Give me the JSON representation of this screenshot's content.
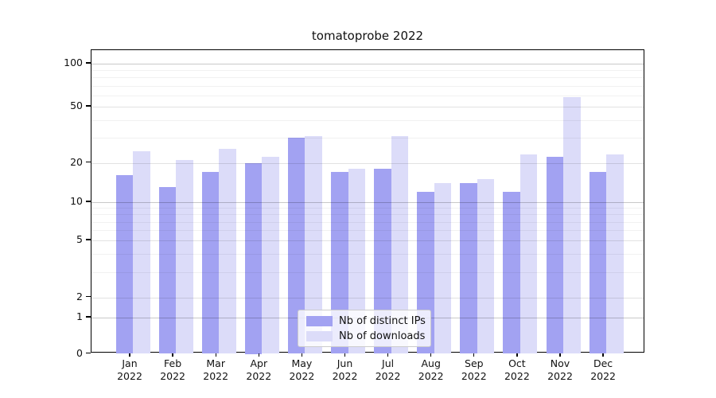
{
  "chart_data": {
    "type": "bar",
    "title": "tomatoprobe 2022",
    "categories": [
      {
        "label": "Jan",
        "sub": "2022"
      },
      {
        "label": "Feb",
        "sub": "2022"
      },
      {
        "label": "Mar",
        "sub": "2022"
      },
      {
        "label": "Apr",
        "sub": "2022"
      },
      {
        "label": "May",
        "sub": "2022"
      },
      {
        "label": "Jun",
        "sub": "2022"
      },
      {
        "label": "Jul",
        "sub": "2022"
      },
      {
        "label": "Aug",
        "sub": "2022"
      },
      {
        "label": "Sep",
        "sub": "2022"
      },
      {
        "label": "Oct",
        "sub": "2022"
      },
      {
        "label": "Nov",
        "sub": "2022"
      },
      {
        "label": "Dec",
        "sub": "2022"
      }
    ],
    "series": [
      {
        "name": "Nb of distinct IPs",
        "color": "#a2a2f2",
        "values": [
          16,
          13,
          17,
          20,
          30,
          17,
          18,
          12,
          14,
          12,
          22,
          17
        ]
      },
      {
        "name": "Nb of downloads",
        "color": "#dcdcf9",
        "values": [
          24,
          21,
          25,
          22,
          31,
          18,
          31,
          14,
          15,
          23,
          58,
          23
        ]
      }
    ],
    "yaxis": {
      "scale": "symlog",
      "tick_values": [
        0,
        1,
        2,
        5,
        10,
        20,
        50,
        100
      ],
      "tick_labels": [
        "0",
        "1",
        "2",
        "5",
        "10",
        "20",
        "50",
        "100"
      ],
      "minor_gridline_values": [
        3,
        4,
        6,
        7,
        8,
        9,
        30,
        40,
        60,
        70,
        80,
        90
      ],
      "ylim": [
        0,
        125
      ]
    },
    "grid": true,
    "legend_position": "lower center",
    "background_color": "#ffffff"
  }
}
